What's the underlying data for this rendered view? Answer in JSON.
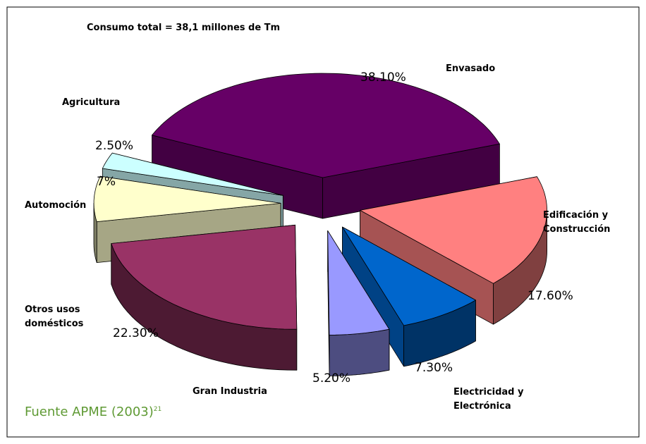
{
  "chart_data": {
    "type": "pie3d",
    "title": "Consumo total = 38,1 millones de Tm",
    "categories": [
      "Envasado",
      "Edificación y Construcción",
      "Electricidad y Electrónica",
      "Gran Industria",
      "Otros usos domésticos",
      "Automoción",
      "Agricultura"
    ],
    "values": [
      38.1,
      17.6,
      7.3,
      5.2,
      22.3,
      7,
      2.5
    ],
    "value_labels": [
      "38.10%",
      "17.60%",
      "7.30%",
      "5.20%",
      "22.30%",
      "7%",
      "2.50%"
    ],
    "colors": [
      "#660066",
      "#FF8080",
      "#0066CC",
      "#9999FF",
      "#993366",
      "#FFFFCC",
      "#CCFFFF"
    ],
    "source": "Fuente APME (2003)",
    "source_note": "21"
  }
}
